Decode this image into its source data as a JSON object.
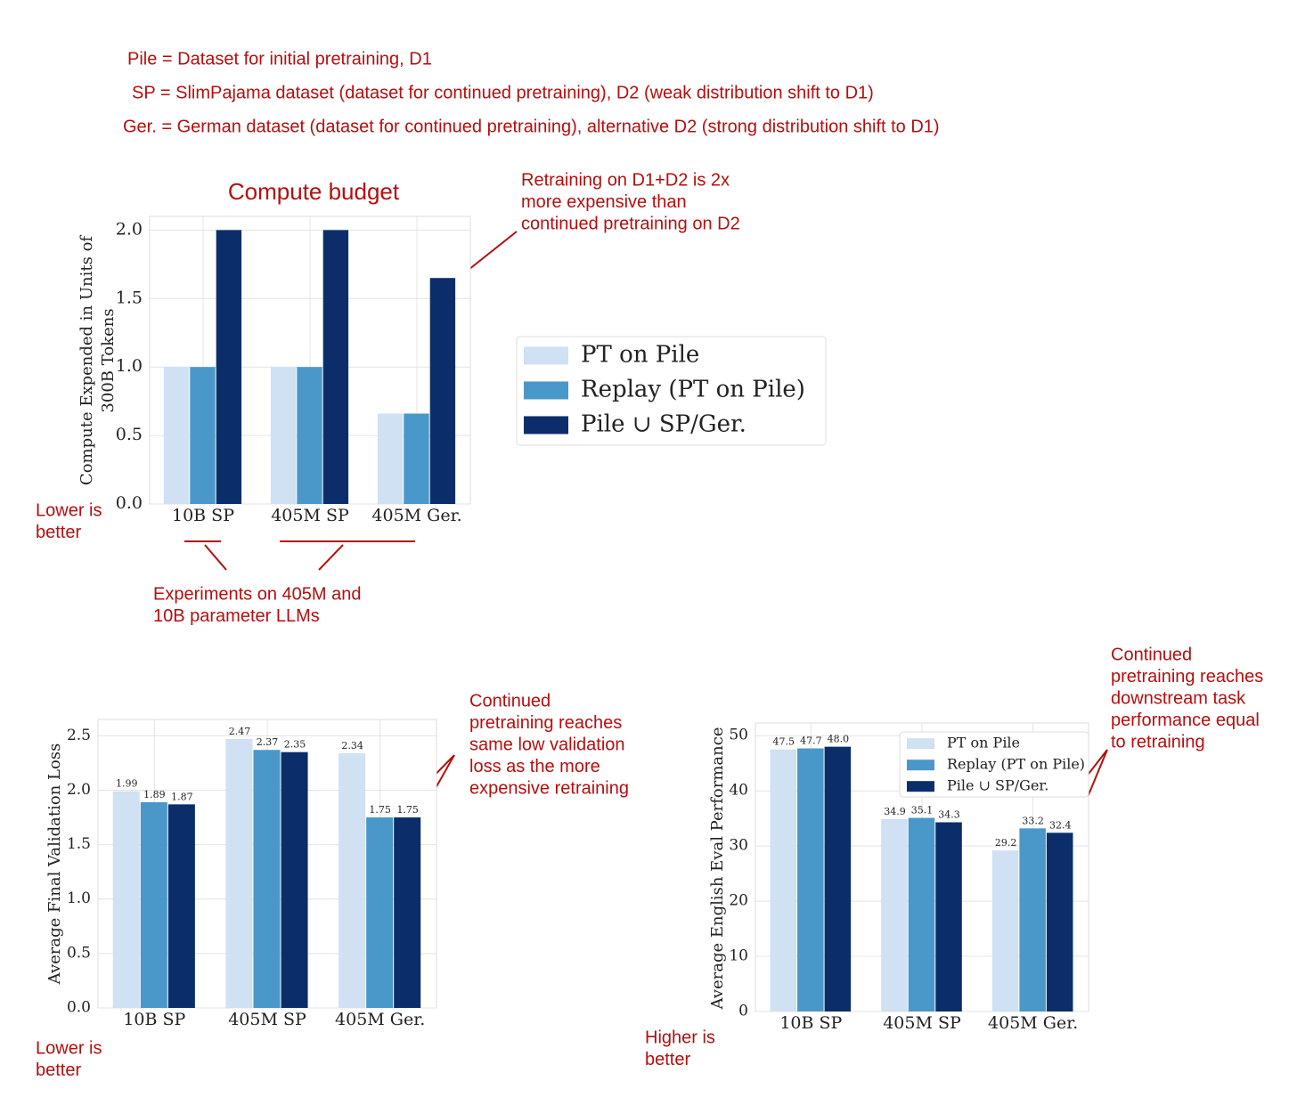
{
  "notes": [
    "Pile = Dataset for initial pretraining, D1",
    "SP = SlimPajama dataset (dataset for continued pretraining), D2 (weak distribution shift to D1)",
    "Ger. = German dataset (dataset for continued pretraining), alternative D2 (strong distribution shift to D1)"
  ],
  "chart_data": [
    {
      "type": "bar",
      "title": "Compute budget",
      "ylabel": [
        "Compute Expended in Units of",
        "300B Tokens"
      ],
      "categories": [
        "10B SP",
        "405M SP",
        "405M Ger."
      ],
      "series": [
        {
          "name": "PT on Pile",
          "color": "#cfe1f2",
          "values": [
            1.0,
            1.0,
            0.66
          ]
        },
        {
          "name": "Replay (PT on Pile)",
          "color": "#4a98c9",
          "values": [
            1.0,
            1.0,
            0.66
          ]
        },
        {
          "name": "Pile ∪ SP/Ger.",
          "color": "#0b2e6b",
          "values": [
            2.0,
            2.0,
            1.65
          ]
        }
      ],
      "ylim": [
        0,
        2.1
      ],
      "yticks": [
        {
          "value": 0,
          "label": "0.0"
        },
        0.5,
        {
          "value": 1,
          "label": "1.0"
        },
        1.5,
        {
          "value": 2,
          "label": "2.0"
        }
      ],
      "grid": true,
      "legend": "outside-right",
      "data_labels": false,
      "annotations": [
        [
          "Retraining on D1+D2 is 2x",
          "more expensive than",
          "continued pretraining on D2"
        ],
        [
          "Lower is",
          "better"
        ],
        [
          "Experiments on 405M and",
          "10B parameter LLMs"
        ]
      ]
    },
    {
      "type": "bar",
      "ylabel": [
        "Average Final Validation Loss"
      ],
      "categories": [
        "10B SP",
        "405M SP",
        "405M Ger."
      ],
      "series": [
        {
          "name": "PT on Pile",
          "color": "#cfe1f2",
          "values": [
            1.99,
            2.47,
            2.34
          ]
        },
        {
          "name": "Replay (PT on Pile)",
          "color": "#4a98c9",
          "values": [
            1.89,
            2.37,
            1.75
          ]
        },
        {
          "name": "Pile ∪ SP/Ger.",
          "color": "#0b2e6b",
          "values": [
            1.87,
            2.35,
            1.75
          ]
        }
      ],
      "ylim": [
        0,
        2.65
      ],
      "yticks": [
        {
          "value": 0,
          "label": "0.0"
        },
        0.5,
        {
          "value": 1,
          "label": "1.0"
        },
        1.5,
        {
          "value": 2,
          "label": "2.0"
        },
        2.5
      ],
      "grid": true,
      "data_labels": true,
      "annotations": [
        [
          "Continued",
          "pretraining reaches",
          "same low validation",
          "loss as the more",
          "expensive retraining"
        ],
        [
          "Lower is",
          "better"
        ]
      ]
    },
    {
      "type": "bar",
      "ylabel": [
        "Average English Eval Performance"
      ],
      "categories": [
        "10B SP",
        "405M SP",
        "405M Ger."
      ],
      "series": [
        {
          "name": "PT on Pile",
          "color": "#cfe1f2",
          "values": [
            47.5,
            34.9,
            29.2
          ]
        },
        {
          "name": "Replay (PT on Pile)",
          "color": "#4a98c9",
          "values": [
            47.7,
            35.1,
            33.2
          ]
        },
        {
          "name": "Pile ∪ SP/Ger.",
          "color": "#0b2e6b",
          "values": [
            48.0,
            34.3,
            32.4
          ],
          "value_labels": [
            "48.0",
            "34.3",
            "32.4"
          ]
        }
      ],
      "ylim": [
        0,
        52.3
      ],
      "yticks": [
        0,
        10,
        20,
        30,
        40,
        50
      ],
      "grid": true,
      "legend": "upper-right",
      "data_labels": true,
      "annotations": [
        [
          "Continued",
          "pretraining reaches",
          "downstream task",
          "performance equal",
          "to retraining"
        ],
        [
          "Higher is",
          "better"
        ]
      ]
    }
  ]
}
